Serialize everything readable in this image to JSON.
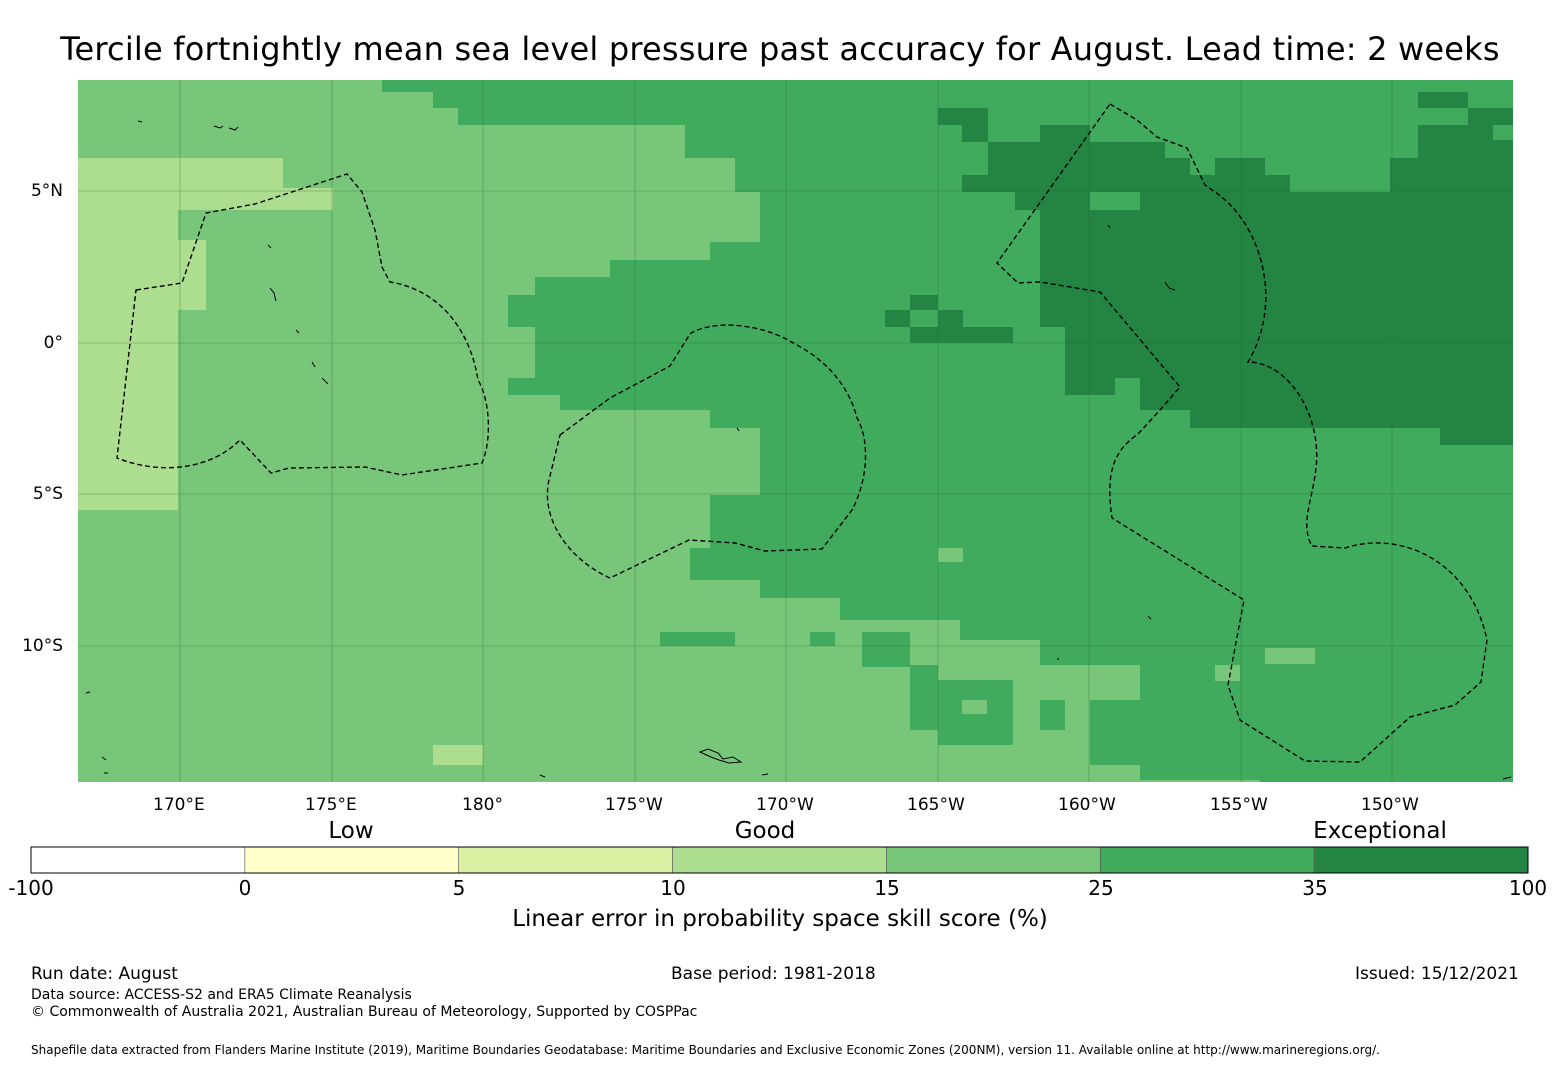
{
  "title": "Tercile fortnightly mean sea level pressure past accuracy for August. Lead time: 2 weeks",
  "map": {
    "lon_ticks": [
      "170°E",
      "175°E",
      "180°",
      "175°W",
      "170°W",
      "165°W",
      "160°W",
      "155°W",
      "150°W"
    ],
    "lat_ticks": [
      "5°N",
      "0°",
      "5°S",
      "10°S"
    ]
  },
  "colorbar": {
    "categories": [
      "Low",
      "Good",
      "Exceptional"
    ],
    "ticks": [
      "-100",
      "0",
      "5",
      "10",
      "15",
      "25",
      "35",
      "100"
    ],
    "colors": [
      "#ffffff",
      "#ffffcc",
      "#d9f0a3",
      "#addd8e",
      "#78c679",
      "#41ab5d",
      "#238443"
    ],
    "label": "Linear error in probability space skill score (%)"
  },
  "footer": {
    "run_date": "Run date: August",
    "base_period": "Base period: 1981-2018",
    "issued": "Issued: 15/12/2021",
    "data_source": "Data source: ACCESS-S2 and ERA5 Climate Reanalysis",
    "copyright": "© Commonwealth of Australia 2021, Australian Bureau of Meteorology, Supported by COSPPac",
    "shapefile": "Shapefile data extracted from Flanders Marine Institute (2019), Maritime Boundaries Geodatabase: Maritime Boundaries and Exclusive Economic Zones (200NM), version 11. Available online at http://www.marineregions.org/."
  }
}
